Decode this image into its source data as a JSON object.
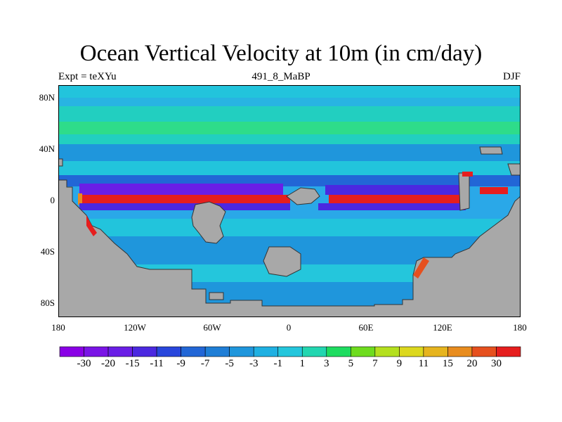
{
  "title": "Ocean Vertical Velocity at 10m (in cm/day)",
  "left_label": "Expt = teXYu",
  "center_label": "491_8_MaBP",
  "right_label": "DJF",
  "colors": {
    "land": "#a8a8a8",
    "background": "#29a5e6"
  },
  "chart_data": {
    "type": "heatmap",
    "title": "Ocean Vertical Velocity at 10m (in cm/day)",
    "xlim": [
      -180,
      180
    ],
    "ylim": [
      -90,
      90
    ],
    "x_ticks": [
      "180",
      "120W",
      "60W",
      "0",
      "60E",
      "120E",
      "180"
    ],
    "y_ticks": [
      "80N",
      "40N",
      "0",
      "40S",
      "80S"
    ],
    "colorbar": {
      "labels": [
        "-30",
        "-20",
        "-15",
        "-11",
        "-9",
        "-7",
        "-5",
        "-3",
        "-1",
        "1",
        "3",
        "5",
        "7",
        "9",
        "11",
        "15",
        "20",
        "30"
      ],
      "colors": [
        "#8a00e6",
        "#7a14e6",
        "#6a1ee6",
        "#4b28e0",
        "#2846dc",
        "#2266d6",
        "#1f7ed6",
        "#1f96dc",
        "#1fb0e2",
        "#24c6dc",
        "#22d6b0",
        "#1edc60",
        "#6edc1e",
        "#b4e01e",
        "#dcd81e",
        "#e6b41e",
        "#e88c1e",
        "#e6501e",
        "#e61e1e"
      ]
    }
  }
}
